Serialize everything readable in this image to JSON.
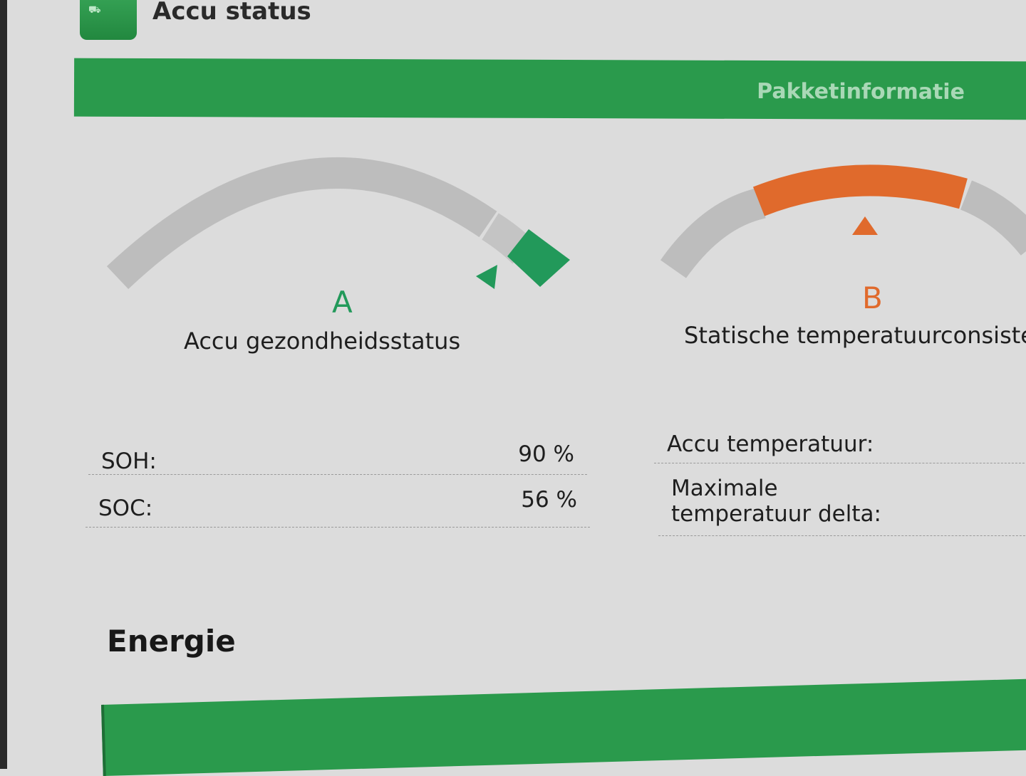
{
  "header": {
    "title": "Accu status",
    "app_icon": "car-battery-app-icon"
  },
  "banner": {
    "label": "Pakketinformatie"
  },
  "gauges": [
    {
      "grade": "A",
      "title": "Accu gezondheidsstatus",
      "color": "#22995a"
    },
    {
      "grade": "B",
      "title": "Statische temperatuurconsiste",
      "color": "#e06a2c"
    }
  ],
  "left_table": [
    {
      "label": "SOH:",
      "value": "90 %"
    },
    {
      "label": "SOC:",
      "value": "56 %"
    }
  ],
  "right_table": [
    {
      "label": "Accu temperatuur:"
    },
    {
      "label": "Maximale\ntemperatuur delta:"
    }
  ],
  "section": {
    "title": "Energie"
  },
  "colors": {
    "green": "#2a9a4c",
    "orange": "#e06a2c",
    "grey": "#bdbdbd"
  }
}
